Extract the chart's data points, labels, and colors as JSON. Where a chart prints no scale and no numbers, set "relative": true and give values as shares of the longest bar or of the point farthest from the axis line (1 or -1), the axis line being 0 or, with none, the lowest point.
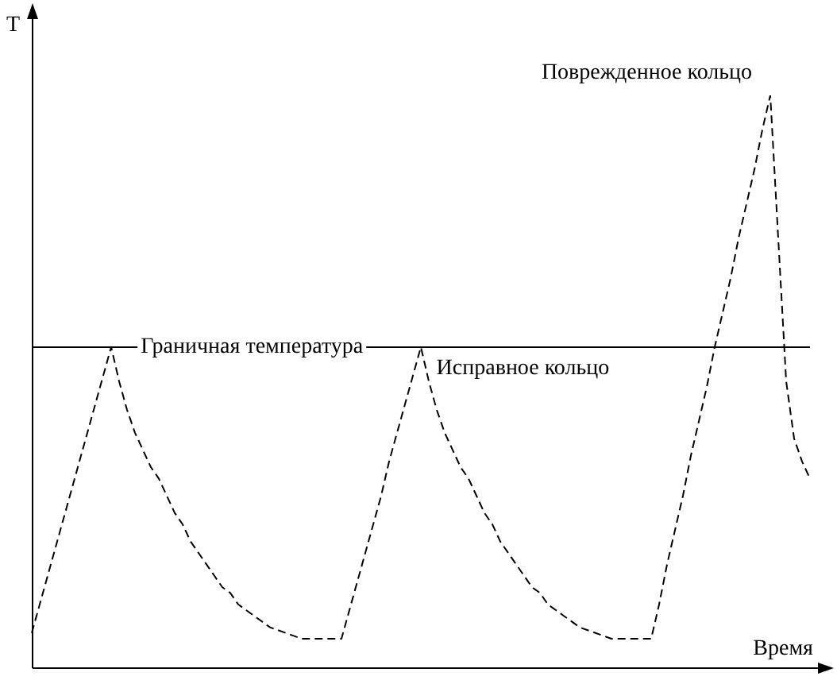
{
  "chart_data": {
    "type": "line",
    "relative": true,
    "xlabel": "Время",
    "ylabel": "T",
    "categories": [
      null,
      null,
      null,
      null,
      null,
      null,
      null,
      null,
      null,
      null,
      null,
      null,
      null,
      null,
      null,
      null,
      null,
      null,
      null,
      null,
      null,
      null,
      null,
      null,
      null,
      null,
      null,
      null,
      null,
      null,
      null,
      null,
      null,
      null,
      null,
      null,
      null,
      null,
      null,
      null,
      null,
      null,
      null,
      null,
      null,
      null,
      null,
      null,
      null,
      null,
      null,
      null,
      null,
      null,
      null,
      null,
      null,
      null,
      null,
      null,
      null,
      null,
      null,
      null,
      null,
      null,
      null,
      null,
      null,
      null,
      null,
      null,
      null,
      null,
      null,
      null,
      null,
      null,
      null,
      null,
      null,
      null,
      null,
      null,
      null,
      null,
      null,
      null,
      null,
      null,
      null,
      null,
      null,
      null,
      null,
      null,
      null,
      null,
      null
    ],
    "series": [
      {
        "color": "#000000",
        "values": [
          0.06,
          0.11,
          0.16,
          0.21,
          0.26,
          0.31,
          0.36,
          0.41,
          0.46,
          0.51,
          0.56,
          0.5,
          0.45,
          0.41,
          0.38,
          0.35,
          0.33,
          0.3,
          0.27,
          0.25,
          0.22,
          0.2,
          0.18,
          0.16,
          0.14,
          0.13,
          0.11,
          0.1,
          0.09,
          0.08,
          0.07,
          0.065,
          0.06,
          0.055,
          0.05,
          0.05,
          0.05,
          0.05,
          0.05,
          0.05,
          0.1,
          0.15,
          0.2,
          0.25,
          0.3,
          0.36,
          0.41,
          0.46,
          0.51,
          0.56,
          0.5,
          0.45,
          0.41,
          0.38,
          0.35,
          0.33,
          0.3,
          0.27,
          0.25,
          0.22,
          0.2,
          0.18,
          0.16,
          0.14,
          0.13,
          0.11,
          0.1,
          0.09,
          0.08,
          0.07,
          0.065,
          0.06,
          0.055,
          0.05,
          0.05,
          0.05,
          0.05,
          0.05,
          0.05,
          0.11,
          0.18,
          0.24,
          0.3,
          0.37,
          0.43,
          0.49,
          0.56,
          0.62,
          0.68,
          0.75,
          0.81,
          0.87,
          0.94,
          1,
          0.75,
          0.5,
          0.4,
          0.36,
          0.33
        ]
      }
    ],
    "ref_lines": [
      {
        "axis": "y",
        "value": 0.56,
        "label": "Граничная температура",
        "color": "#000000"
      }
    ],
    "annotations": [
      "Исправное кольцо",
      "Поврежденное кольцо"
    ],
    "marker": "none",
    "line_style": "dashed"
  }
}
